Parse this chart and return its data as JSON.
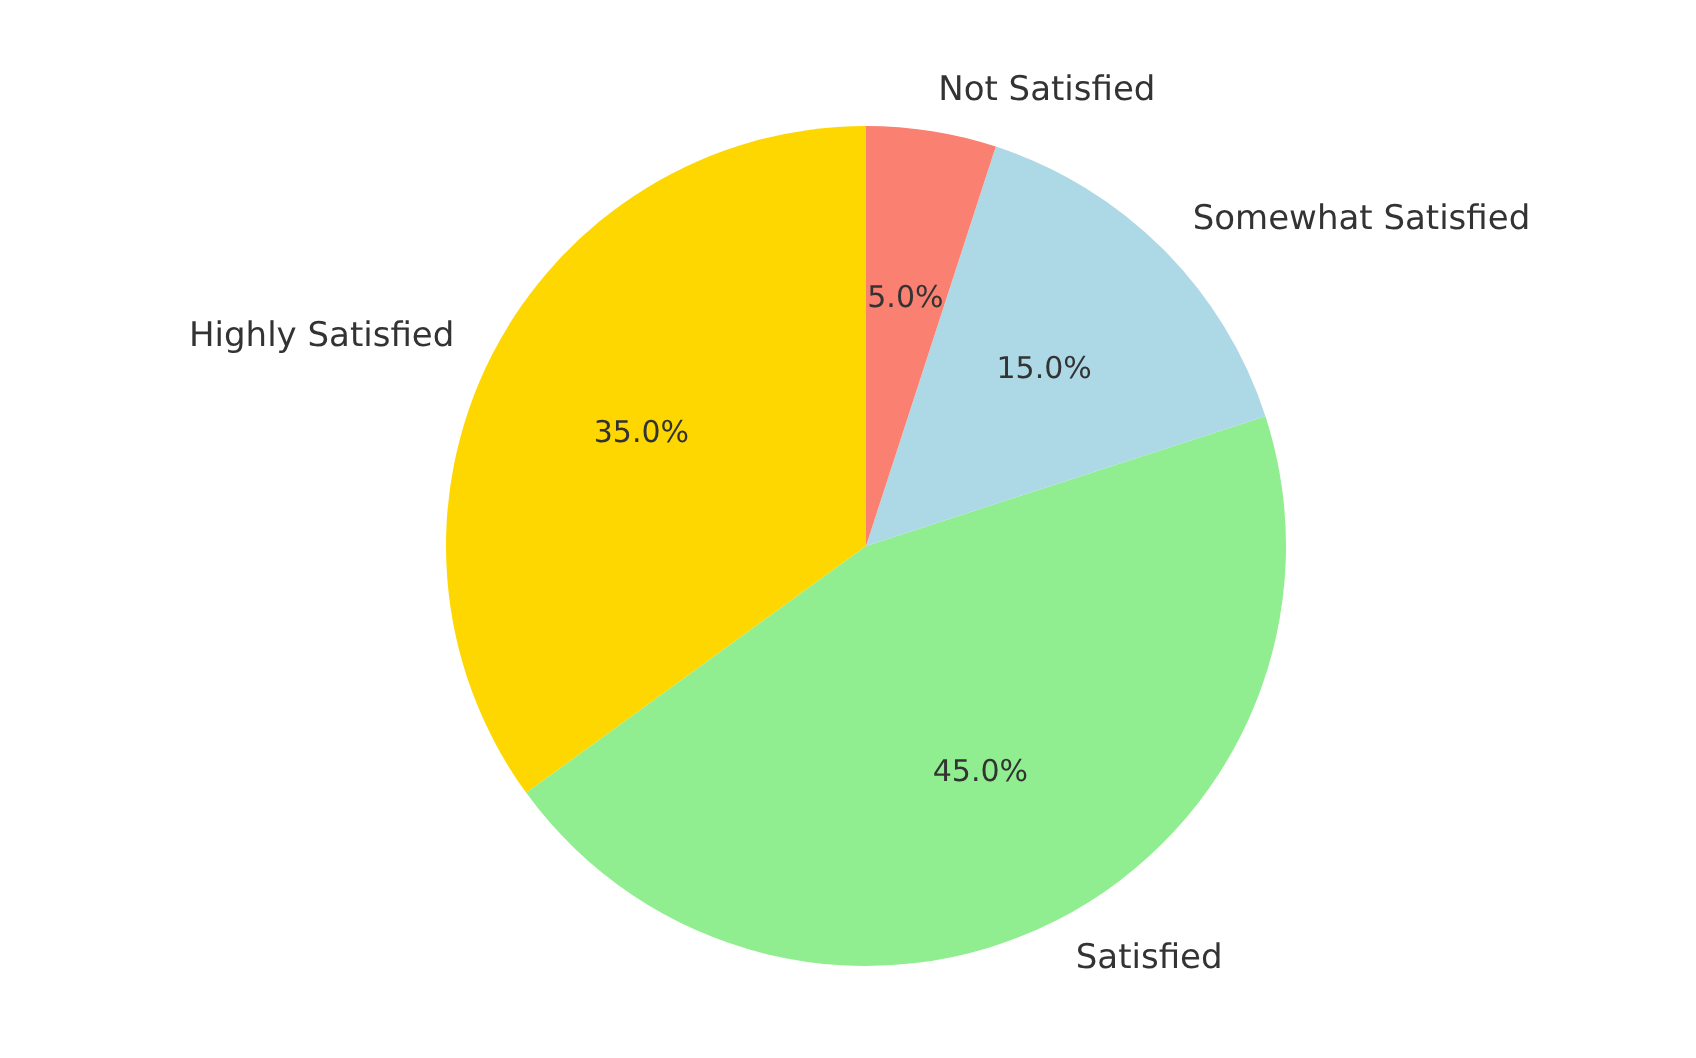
{
  "chart_data": {
    "type": "pie",
    "categories": [
      "Highly Satisfied",
      "Satisfied",
      "Somewhat Satisfied",
      "Not Satisfied"
    ],
    "values": [
      35,
      45,
      15,
      5
    ],
    "colors": [
      "#ffd700",
      "#90ee90",
      "#add8e6",
      "#fa8072"
    ],
    "value_labels": [
      "35.0%",
      "45.0%",
      "15.0%",
      "5.0%"
    ],
    "legend": false
  }
}
